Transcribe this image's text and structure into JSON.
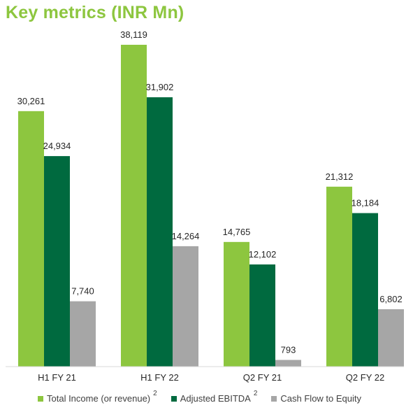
{
  "title": "Key metrics (INR Mn)",
  "chart_data": {
    "type": "bar",
    "categories": [
      "H1 FY 21",
      "H1 FY 22",
      "Q2 FY 21",
      "Q2 FY 22"
    ],
    "series": [
      {
        "name": "Total Income (or revenue)",
        "superscript": "2",
        "color": "#8dc63f",
        "values": [
          30261,
          38119,
          14765,
          21312
        ],
        "labels": [
          "30,261",
          "38,119",
          "14,765",
          "21,312"
        ]
      },
      {
        "name": "Adjusted EBITDA",
        "superscript": "2",
        "color": "#006a3f",
        "values": [
          24934,
          31902,
          12102,
          18184
        ],
        "labels": [
          "24,934",
          "31,902",
          "12,102",
          "18,184"
        ]
      },
      {
        "name": "Cash Flow to Equity",
        "superscript": "",
        "color": "#a6a6a6",
        "values": [
          7740,
          14264,
          793,
          6802
        ],
        "labels": [
          "7,740",
          "14,264",
          "793",
          "6,802"
        ]
      }
    ],
    "ylim": [
      0,
      38119
    ],
    "grid": false,
    "legend_position": "bottom"
  }
}
